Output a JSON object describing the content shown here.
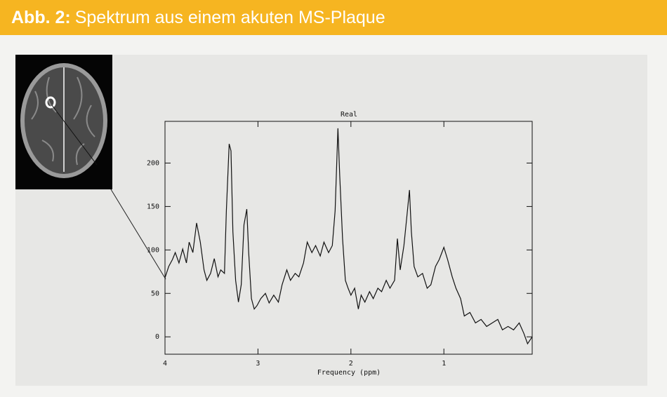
{
  "figure": {
    "label": "Abb. 2:",
    "caption": "Spektrum aus einem akuten MS-Plaque"
  },
  "chart_data": {
    "type": "line",
    "title": "Real",
    "x_label": "Frequency (ppm)",
    "xlim": [
      4,
      0.05
    ],
    "xticks": [
      4,
      3,
      2,
      1
    ],
    "ylim": [
      -20,
      248
    ],
    "yticks": [
      0,
      50,
      100,
      150,
      200
    ],
    "color": "#111111",
    "x": [
      4.0,
      3.96,
      3.92,
      3.89,
      3.85,
      3.81,
      3.77,
      3.74,
      3.7,
      3.66,
      3.62,
      3.58,
      3.55,
      3.51,
      3.47,
      3.43,
      3.4,
      3.36,
      3.34,
      3.31,
      3.29,
      3.27,
      3.24,
      3.21,
      3.18,
      3.15,
      3.12,
      3.1,
      3.07,
      3.04,
      3.01,
      2.97,
      2.92,
      2.88,
      2.83,
      2.78,
      2.74,
      2.69,
      2.65,
      2.6,
      2.56,
      2.51,
      2.47,
      2.42,
      2.38,
      2.33,
      2.29,
      2.24,
      2.2,
      2.17,
      2.14,
      2.12,
      2.09,
      2.06,
      2.03,
      2.0,
      1.96,
      1.92,
      1.89,
      1.85,
      1.8,
      1.76,
      1.71,
      1.67,
      1.62,
      1.58,
      1.53,
      1.5,
      1.47,
      1.43,
      1.4,
      1.37,
      1.35,
      1.32,
      1.28,
      1.23,
      1.18,
      1.14,
      1.09,
      1.05,
      1.0,
      0.96,
      0.91,
      0.87,
      0.82,
      0.78,
      0.72,
      0.66,
      0.6,
      0.54,
      0.48,
      0.42,
      0.37,
      0.31,
      0.25,
      0.19,
      0.14,
      0.1,
      0.05
    ],
    "values": [
      68,
      81,
      89,
      97,
      85,
      101,
      85,
      109,
      97,
      131,
      109,
      77,
      65,
      73,
      90,
      69,
      77,
      73,
      145,
      222,
      214,
      121,
      65,
      40,
      60,
      129,
      147,
      97,
      44,
      32,
      36,
      44,
      50,
      39,
      48,
      40,
      60,
      77,
      65,
      73,
      69,
      85,
      109,
      97,
      105,
      93,
      109,
      97,
      105,
      145,
      240,
      185,
      113,
      65,
      56,
      48,
      56,
      32,
      48,
      40,
      52,
      44,
      56,
      52,
      65,
      56,
      65,
      113,
      77,
      105,
      137,
      169,
      121,
      81,
      69,
      73,
      56,
      60,
      81,
      89,
      103,
      89,
      69,
      56,
      44,
      24,
      28,
      16,
      20,
      12,
      16,
      20,
      8,
      12,
      8,
      16,
      4,
      -8,
      0
    ]
  }
}
